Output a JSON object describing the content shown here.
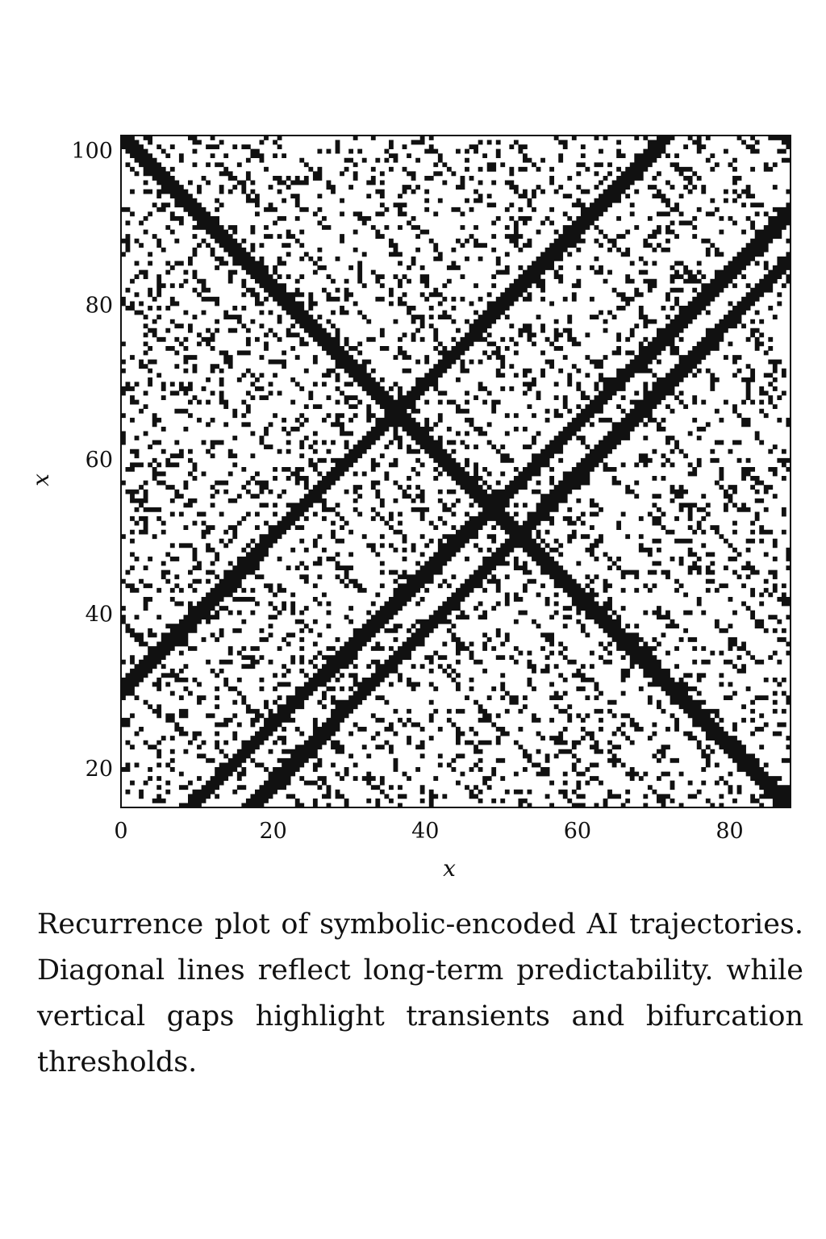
{
  "chart_data": {
    "type": "heatmap",
    "subtype": "recurrence-plot",
    "xlabel": "x",
    "ylabel": "x",
    "xlim": [
      0,
      88
    ],
    "ylim": [
      15,
      102
    ],
    "xticks": [
      0,
      20,
      40,
      60,
      80
    ],
    "yticks": [
      20,
      40,
      60,
      80,
      100
    ],
    "colors": {
      "recurrent": "#111111",
      "background": "#ffffff"
    },
    "grid": false,
    "legend": "none",
    "diagonal_lines": [
      {
        "direction": "anti",
        "description": "main line of identity",
        "points": [
          [
            0,
            102
          ],
          [
            88,
            15
          ]
        ]
      },
      {
        "direction": "rising",
        "points": [
          [
            0,
            30
          ],
          [
            72,
            102
          ]
        ]
      },
      {
        "direction": "rising",
        "points": [
          [
            9,
            15
          ],
          [
            88,
            92
          ]
        ]
      },
      {
        "direction": "rising",
        "points": [
          [
            17,
            15
          ],
          [
            88,
            86
          ]
        ]
      }
    ],
    "density": 0.22
  },
  "caption": "Recurrence plot of symbolic-encoded AI trajectories. Diagonal lines reflect long-term predictability. while vertical gaps highlight transients and bifurcation thresholds."
}
